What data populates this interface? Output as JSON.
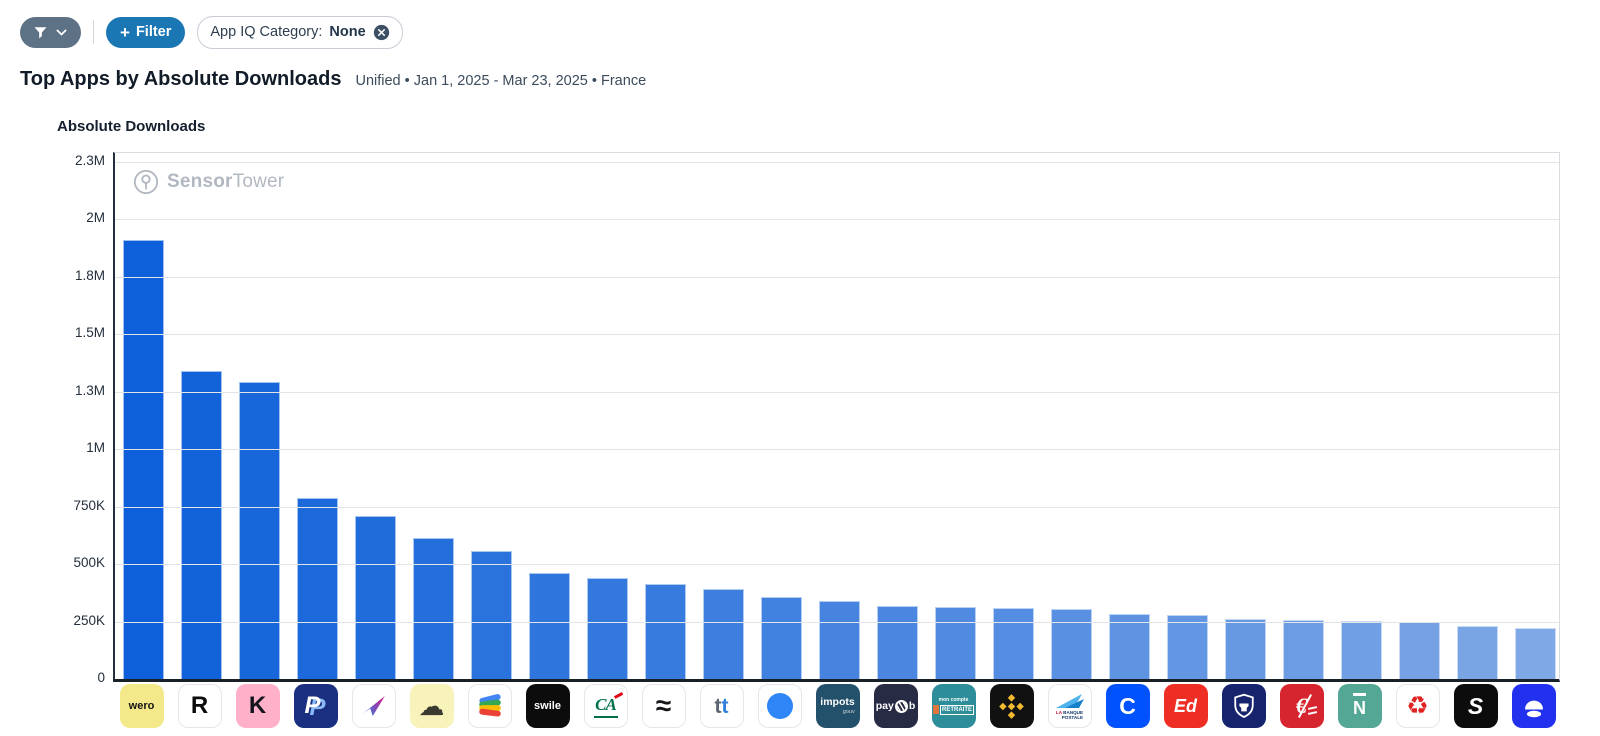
{
  "toolbar": {
    "add_filter_plus": "+",
    "add_filter_label": "Filter",
    "chip_label": "App IQ Category:",
    "chip_value": "None",
    "icons": {
      "menu": "funnel-icon",
      "expand": "chevron-down-icon",
      "remove": "circle-x-icon"
    },
    "colors": {
      "menu_bg": "#5e7286",
      "add_filter_bg": "#1b76b4"
    }
  },
  "header": {
    "title": "Top Apps by Absolute Downloads",
    "subtitle": "Unified • Jan 1, 2025 - Mar 23, 2025 • France"
  },
  "watermark": {
    "bold": "Sensor",
    "light": "Tower",
    "icon": "sensor-tower-logo"
  },
  "chart_data": {
    "type": "bar",
    "title": "Absolute Downloads",
    "xlabel": "",
    "ylabel": "Absolute Downloads",
    "ylim": [
      0,
      2287000
    ],
    "grid": "horizontal",
    "legend": "none",
    "bar_color_start": "#0d60d9",
    "bar_color_end": "#7fa8e6",
    "y_ticks": [
      {
        "label": "2.3M",
        "value": 2250000
      },
      {
        "label": "2M",
        "value": 2000000
      },
      {
        "label": "1.8M",
        "value": 1750000
      },
      {
        "label": "1.5M",
        "value": 1500000
      },
      {
        "label": "1.3M",
        "value": 1250000
      },
      {
        "label": "1M",
        "value": 1000000
      },
      {
        "label": "750K",
        "value": 750000
      },
      {
        "label": "500K",
        "value": 500000
      },
      {
        "label": "250K",
        "value": 250000
      },
      {
        "label": "0",
        "value": 0
      }
    ],
    "categories": [
      "Wero",
      "Revolut",
      "Klarna",
      "PayPal",
      "Fortuneo",
      "yellow-mascot-app",
      "Google Wallet",
      "Swile",
      "Crédit Agricole",
      "Lydia",
      "Taptap Send",
      "blue-dot-app",
      "impots.gouv",
      "Paylib",
      "Mon compte retraite",
      "Binance",
      "La Banque Postale",
      "Coinbase",
      "Edenred",
      "Crypto.com",
      "red-euro-app",
      "N26",
      "red-knot-app",
      "black-s-app",
      "blue-face-app"
    ],
    "values": [
      1910000,
      1340000,
      1290000,
      785000,
      709000,
      614000,
      556000,
      463000,
      440000,
      412000,
      391000,
      357000,
      338000,
      319000,
      314000,
      309000,
      306000,
      282000,
      277000,
      260000,
      258000,
      254000,
      248000,
      231000,
      223000
    ]
  },
  "apps": [
    {
      "desc": "wero-icon",
      "kind": "text",
      "bg": "#f4e98a",
      "fg": "#141414",
      "text": "wero",
      "size": 11,
      "weight": 800
    },
    {
      "desc": "revolut-r-icon",
      "kind": "text",
      "bg": "#ffffff",
      "fg": "#0b0b0b",
      "text": "R",
      "size": 24,
      "weight": 700,
      "border": true
    },
    {
      "desc": "klarna-k-icon",
      "kind": "text",
      "bg": "#ffb1c9",
      "fg": "#14141e",
      "text": "K",
      "size": 24,
      "weight": 800
    },
    {
      "desc": "paypal-icon",
      "kind": "paypal",
      "bg": "#1a2f80",
      "fg": "#ffffff",
      "fg2": "#8ab9f5",
      "text": "P"
    },
    {
      "desc": "gradient-plane-icon",
      "kind": "plane",
      "bg": "#ffffff",
      "c1": "#2f7de1",
      "c2": "#cf1d8e",
      "border": true
    },
    {
      "desc": "cloud-mascot-icon",
      "kind": "text",
      "bg": "#f8f3bb",
      "fg": "#3a3a30",
      "text": "☁",
      "size": 26,
      "weight": 400
    },
    {
      "desc": "google-wallet-icon",
      "kind": "wallet",
      "bg": "#ffffff",
      "border": true
    },
    {
      "desc": "swile-icon",
      "kind": "text",
      "bg": "#0c0c0c",
      "fg": "#ffffff",
      "text": "swile",
      "size": 11,
      "weight": 700
    },
    {
      "desc": "credit-agricole-icon",
      "kind": "ca",
      "bg": "#ffffff",
      "fg": "#00704a",
      "accent": "#e30613",
      "text": "CA",
      "border": true
    },
    {
      "desc": "waves-icon",
      "kind": "text",
      "bg": "#ffffff",
      "fg": "#16161a",
      "text": "≈",
      "size": 28,
      "weight": 700,
      "border": true
    },
    {
      "desc": "taptap-tt-icon",
      "kind": "spans",
      "bg": "#ffffff",
      "border": true,
      "size": 21,
      "weight": 800,
      "parts": [
        {
          "t": "t",
          "c": "#5b6670"
        },
        {
          "t": "t",
          "c": "#2f80dd"
        }
      ]
    },
    {
      "desc": "blue-dot-icon",
      "kind": "circle",
      "bg": "#ffffff",
      "fg": "#2f86f6",
      "border": true
    },
    {
      "desc": "impots-gouv-icon",
      "kind": "impots",
      "bg": "#23506a",
      "fg": "#ffffff",
      "line1": "impots",
      "line2": "gouv"
    },
    {
      "desc": "paylib-icon",
      "kind": "paylib",
      "bg": "#272b44",
      "fg": "#ffffff",
      "t1": "pay",
      "t2": "b"
    },
    {
      "desc": "mon-compte-retraite-icon",
      "kind": "retraite",
      "bg": "#2d8d98",
      "fg": "#ffffff",
      "line1": "mon compte",
      "line2": "RETRAITE",
      "accent": "#e0763c"
    },
    {
      "desc": "binance-icon",
      "kind": "binance",
      "bg": "#111111",
      "fg": "#f3ba2f"
    },
    {
      "desc": "la-banque-postale-icon",
      "kind": "lbp",
      "bg": "#ffffff",
      "border": true,
      "c1": "#4fb2ea",
      "c2": "#1580c8",
      "red": "#d3003c",
      "navy": "#123a6d",
      "w1": "LA",
      "w2": "BANQUE",
      "w3": "POSTALE"
    },
    {
      "desc": "coinbase-icon",
      "kind": "text",
      "bg": "#0052ff",
      "fg": "#ffffff",
      "text": "C",
      "size": 23,
      "weight": 800
    },
    {
      "desc": "edenred-icon",
      "kind": "text",
      "bg": "#ee2e24",
      "fg": "#ffffff",
      "text": "Ed",
      "size": 18,
      "weight": 800,
      "italic": true
    },
    {
      "desc": "crypto-shield-icon",
      "kind": "shield",
      "bg": "#16246d",
      "fg": "#ffffff"
    },
    {
      "desc": "red-euro-icon",
      "kind": "euro",
      "bg": "#d6252e",
      "fg": "#ffffff",
      "text": "€"
    },
    {
      "desc": "n-overline-icon",
      "kind": "nover",
      "bg": "#53a794",
      "fg": "#ffffff",
      "text": "N",
      "size": 18
    },
    {
      "desc": "red-knot-icon",
      "kind": "text",
      "bg": "#ffffff",
      "fg": "#e02424",
      "text": "♻",
      "size": 25,
      "weight": 400,
      "border": true
    },
    {
      "desc": "black-s-icon",
      "kind": "text",
      "bg": "#0c0c0c",
      "fg": "#ffffff",
      "text": "S",
      "size": 23,
      "weight": 800,
      "italic": true
    },
    {
      "desc": "blue-face-icon",
      "kind": "face",
      "bg": "#2231ee",
      "fg": "#ffffff"
    }
  ]
}
